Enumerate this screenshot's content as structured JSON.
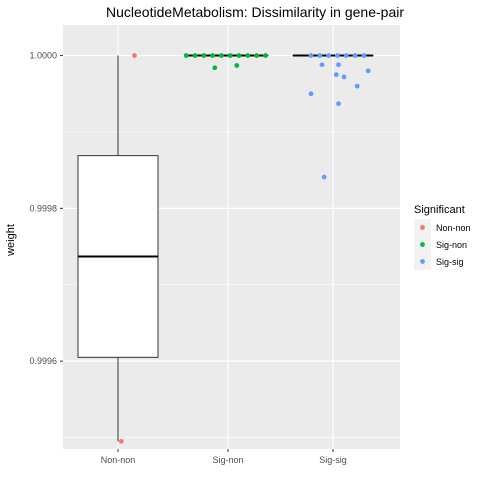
{
  "chart_data": {
    "type": "boxplot",
    "title": "NucleotideMetabolism: Dissimilarity in gene-pair",
    "xlabel": "",
    "ylabel": "weight",
    "ylim": [
      0.999485,
      1.00004
    ],
    "yticks": [
      0.9996,
      0.9998,
      1.0
    ],
    "ytick_labels": [
      "0.9996",
      "0.9998",
      "1.0000"
    ],
    "grid": true,
    "legend_position": "right",
    "legend": {
      "title": "Significant",
      "entries": [
        "Non-non",
        "Sig-non",
        "Sig-sig"
      ]
    },
    "colors": {
      "Non-non": "#F8766D",
      "Sig-non": "#00BA38",
      "Sig-sig": "#619CFF",
      "panel": "#EBEBEB",
      "grid": "#FFFFFF"
    },
    "categories": [
      "Non-non",
      "Sig-non",
      "Sig-sig"
    ],
    "boxes": [
      {
        "category": "Non-non",
        "whisker_low": 0.999495,
        "q1": 0.999605,
        "median": 0.999737,
        "q3": 0.999869,
        "whisker_high": 1.0
      },
      {
        "category": "Sig-non",
        "whisker_low": 1.0,
        "q1": 1.0,
        "median": 1.0,
        "q3": 1.0,
        "whisker_high": 1.0
      },
      {
        "category": "Sig-sig",
        "whisker_low": 1.0,
        "q1": 1.0,
        "median": 1.0,
        "q3": 1.0,
        "whisker_high": 1.0
      }
    ],
    "points": [
      {
        "category": "Non-non",
        "jitter": 0.15,
        "y": 1.0
      },
      {
        "category": "Non-non",
        "jitter": 0.03,
        "y": 0.999495
      },
      {
        "category": "Sig-non",
        "jitter": -0.38,
        "y": 1.0
      },
      {
        "category": "Sig-non",
        "jitter": -0.3,
        "y": 1.0
      },
      {
        "category": "Sig-non",
        "jitter": -0.22,
        "y": 1.0
      },
      {
        "category": "Sig-non",
        "jitter": -0.14,
        "y": 1.0
      },
      {
        "category": "Sig-non",
        "jitter": -0.06,
        "y": 1.0
      },
      {
        "category": "Sig-non",
        "jitter": 0.02,
        "y": 1.0
      },
      {
        "category": "Sig-non",
        "jitter": 0.1,
        "y": 1.0
      },
      {
        "category": "Sig-non",
        "jitter": 0.18,
        "y": 1.0
      },
      {
        "category": "Sig-non",
        "jitter": 0.26,
        "y": 1.0
      },
      {
        "category": "Sig-non",
        "jitter": 0.34,
        "y": 1.0
      },
      {
        "category": "Sig-non",
        "jitter": -0.12,
        "y": 0.999984
      },
      {
        "category": "Sig-non",
        "jitter": 0.08,
        "y": 0.999987
      },
      {
        "category": "Sig-sig",
        "jitter": -0.2,
        "y": 1.0
      },
      {
        "category": "Sig-sig",
        "jitter": -0.12,
        "y": 1.0
      },
      {
        "category": "Sig-sig",
        "jitter": -0.04,
        "y": 1.0
      },
      {
        "category": "Sig-sig",
        "jitter": 0.04,
        "y": 1.0
      },
      {
        "category": "Sig-sig",
        "jitter": 0.12,
        "y": 1.0
      },
      {
        "category": "Sig-sig",
        "jitter": 0.2,
        "y": 1.0
      },
      {
        "category": "Sig-sig",
        "jitter": 0.28,
        "y": 1.0
      },
      {
        "category": "Sig-sig",
        "jitter": -0.1,
        "y": 0.999988
      },
      {
        "category": "Sig-sig",
        "jitter": 0.05,
        "y": 0.999988
      },
      {
        "category": "Sig-sig",
        "jitter": -0.2,
        "y": 0.99995
      },
      {
        "category": "Sig-sig",
        "jitter": 0.03,
        "y": 0.999975
      },
      {
        "category": "Sig-sig",
        "jitter": 0.1,
        "y": 0.999972
      },
      {
        "category": "Sig-sig",
        "jitter": 0.22,
        "y": 0.99996
      },
      {
        "category": "Sig-sig",
        "jitter": 0.32,
        "y": 0.99998
      },
      {
        "category": "Sig-sig",
        "jitter": 0.05,
        "y": 0.999937
      },
      {
        "category": "Sig-sig",
        "jitter": -0.08,
        "y": 0.999841
      }
    ]
  }
}
